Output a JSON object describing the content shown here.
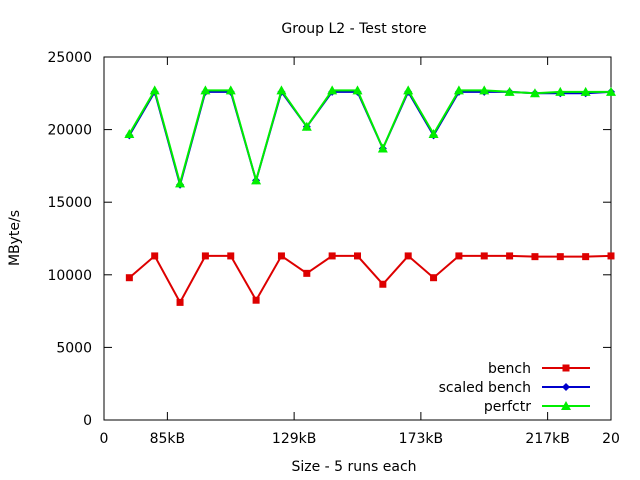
{
  "chart_data": {
    "type": "line",
    "title": "Group L2 - Test store",
    "xlabel": "Size - 5 runs each",
    "ylabel": "MByte/s",
    "xlim": [
      0,
      20
    ],
    "ylim": [
      0,
      25000
    ],
    "x_ticks": [
      {
        "x": 0,
        "label": "0"
      },
      {
        "x": 2.5,
        "label": "85kB"
      },
      {
        "x": 7.5,
        "label": "129kB"
      },
      {
        "x": 12.5,
        "label": "173kB"
      },
      {
        "x": 17.5,
        "label": "217kB"
      },
      {
        "x": 20,
        "label": "20"
      }
    ],
    "y_ticks": [
      0,
      5000,
      10000,
      15000,
      20000,
      25000
    ],
    "grid": false,
    "legend_position": "bottom-right",
    "x": [
      1,
      2,
      3,
      4,
      5,
      6,
      7,
      8,
      9,
      10,
      11,
      12,
      13,
      14,
      15,
      16,
      17,
      18,
      19,
      20
    ],
    "series": [
      {
        "name": "bench",
        "color": "#dd0000",
        "marker": "square",
        "values": [
          9800,
          11300,
          8100,
          11300,
          11300,
          8250,
          11300,
          10100,
          11300,
          11300,
          9350,
          11300,
          9800,
          11300,
          11300,
          11300,
          11250,
          11250,
          11250,
          11300
        ]
      },
      {
        "name": "scaled bench",
        "color": "#0000cc",
        "marker": "diamond",
        "values": [
          19600,
          22600,
          16200,
          22600,
          22600,
          16500,
          22600,
          20200,
          22600,
          22600,
          18700,
          22600,
          19600,
          22600,
          22600,
          22600,
          22500,
          22500,
          22500,
          22600
        ]
      },
      {
        "name": "perfctr",
        "color": "#00ee00",
        "marker": "triangle",
        "values": [
          19700,
          22700,
          16300,
          22700,
          22700,
          16500,
          22700,
          20200,
          22700,
          22700,
          18700,
          22700,
          19700,
          22700,
          22700,
          22600,
          22500,
          22600,
          22600,
          22600
        ]
      }
    ]
  }
}
